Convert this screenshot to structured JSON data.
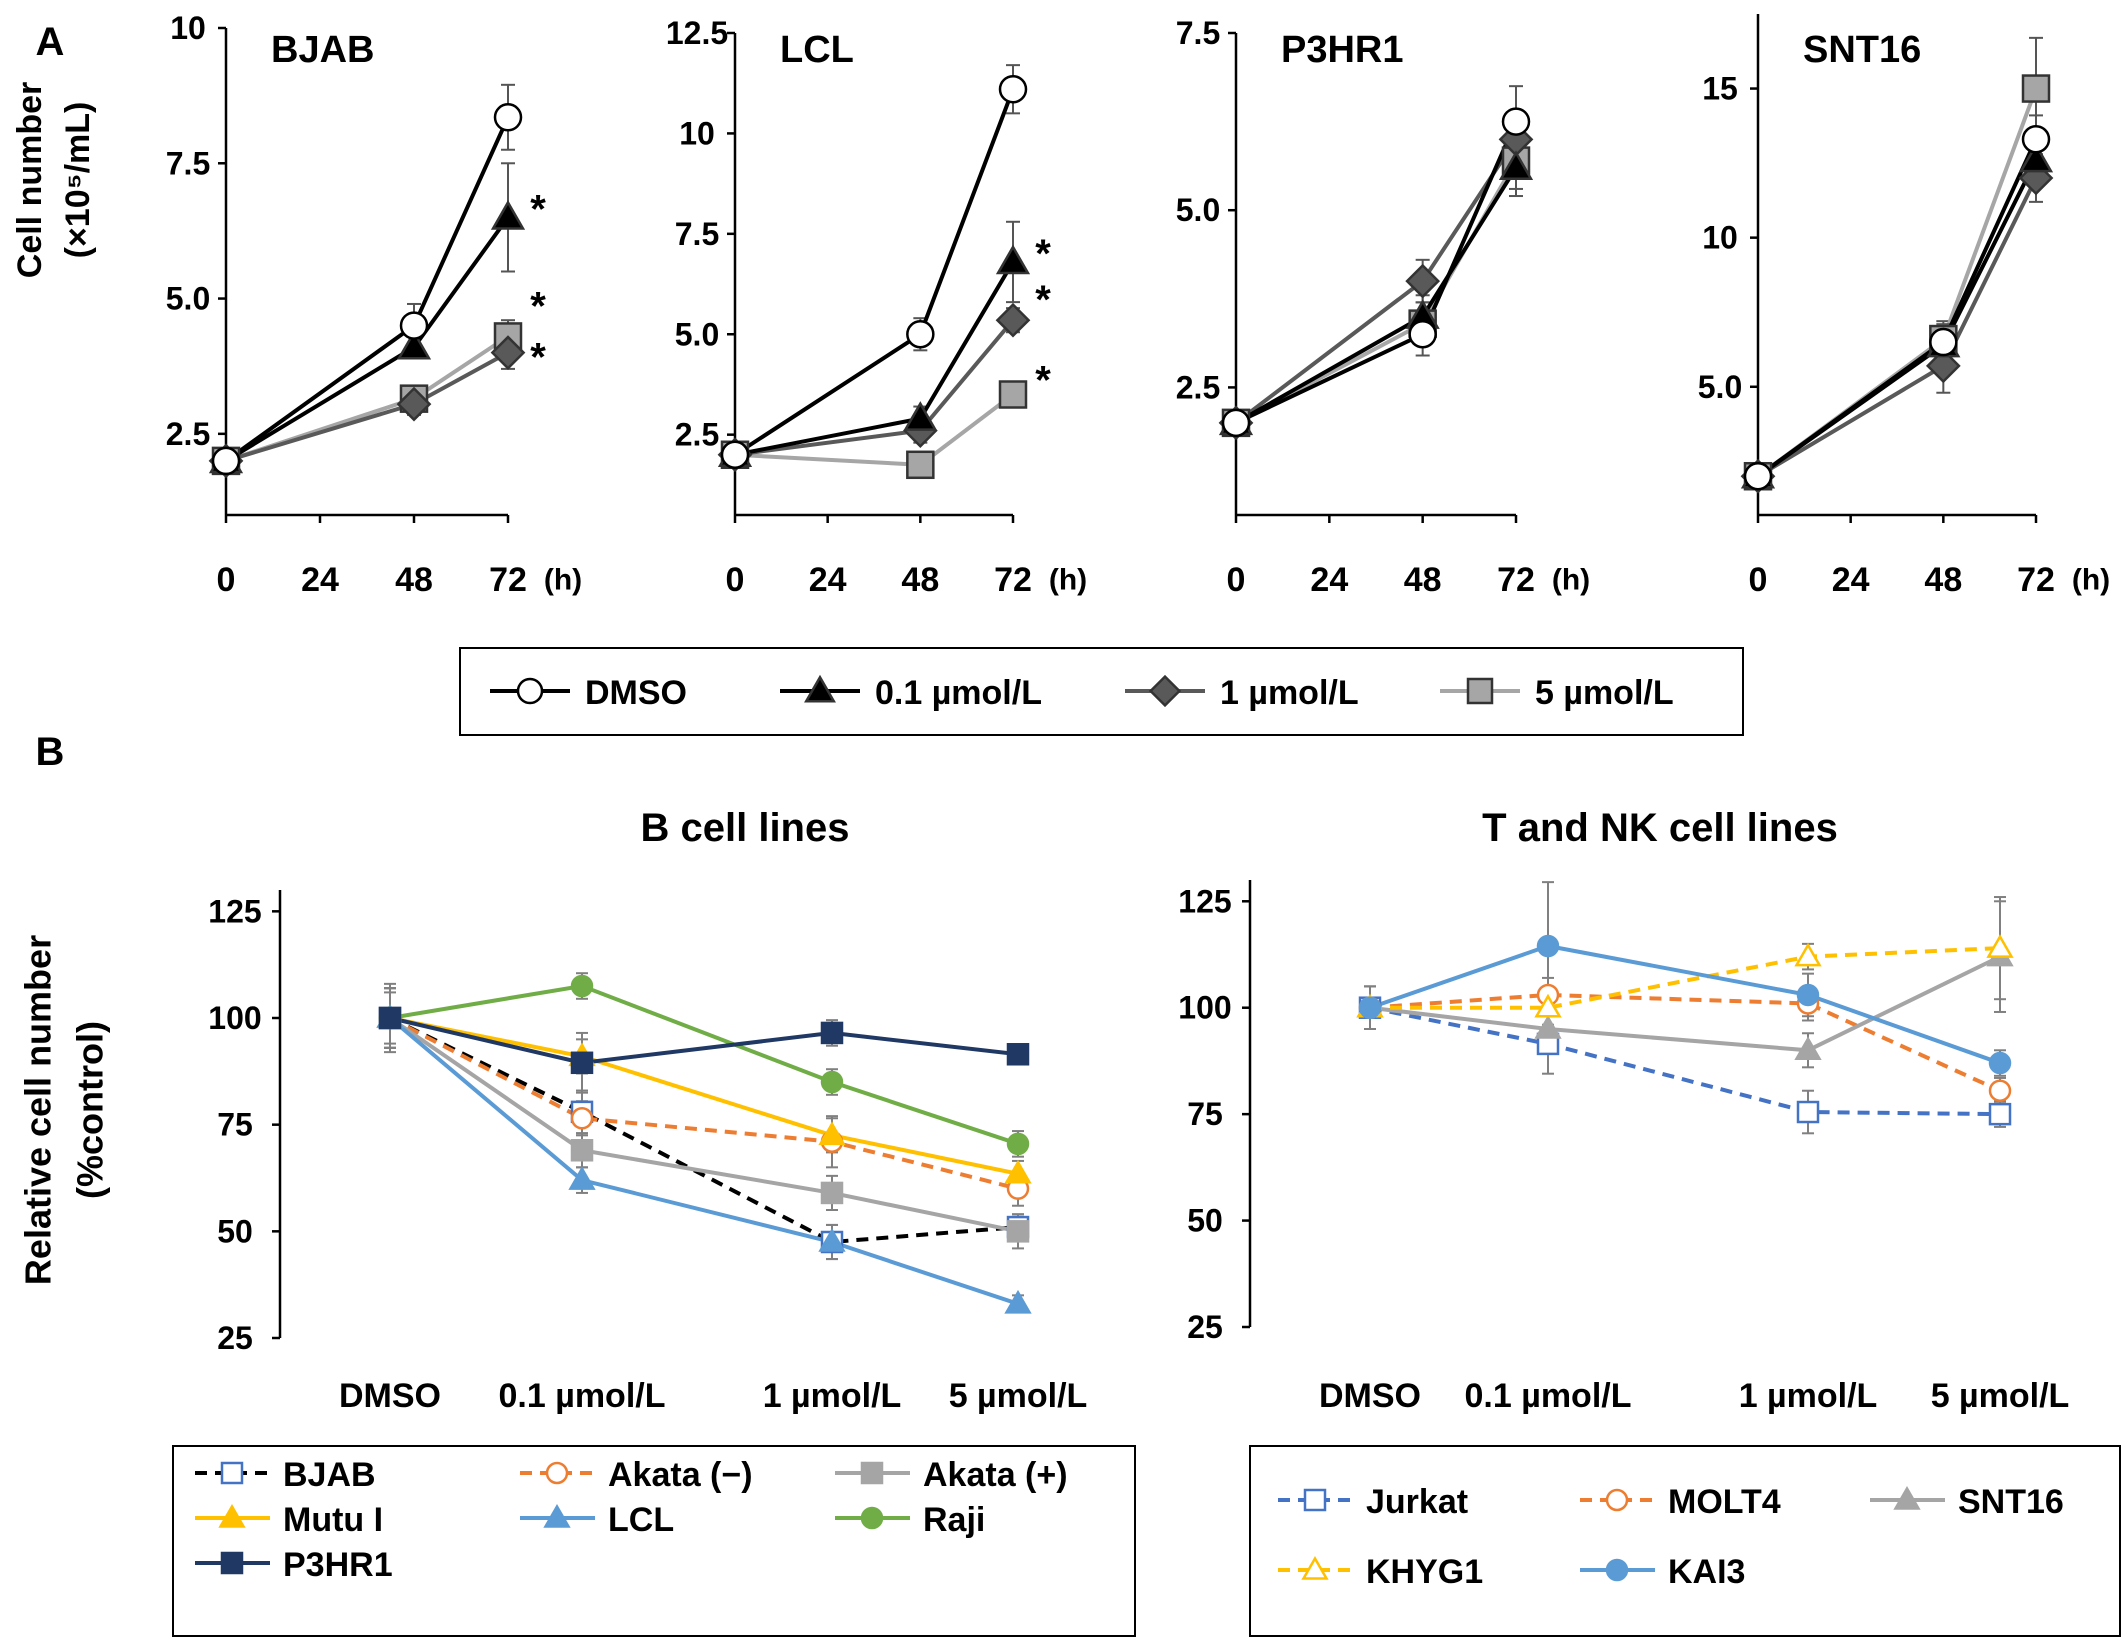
{
  "panels": {
    "a": "A",
    "b": "B"
  },
  "panel_a": {
    "ylabel_line1": "Cell number",
    "ylabel_line2": "(×10⁵/mL)",
    "hours_unit": "(h)",
    "legend": [
      "DMSO",
      "0.1 µmol/L",
      "1 µmol/L",
      "5 µmol/L"
    ],
    "series_colors": [
      "#000000",
      "#000000",
      "#595959",
      "#a6a6a6"
    ],
    "marker_fills": [
      "#ffffff",
      "#000000",
      "#595959",
      "#a6a6a6"
    ],
    "marker_shapes": [
      "circle",
      "triangle",
      "diamond",
      "square"
    ]
  },
  "panel_b": {
    "ylabel_line1": "Relative cell number",
    "ylabel_line2": "(%control)"
  },
  "chart_data": [
    {
      "type": "line",
      "title": "BJAB",
      "x": [
        0,
        48,
        72
      ],
      "x_tick_labels": [
        "0",
        "24",
        "48",
        "72"
      ],
      "y_tick_labels": [
        "2.5",
        "5.0",
        "7.5",
        "10"
      ],
      "ylim": [
        1.0,
        10.0
      ],
      "xlim": [
        0,
        72
      ],
      "series": [
        {
          "name": "DMSO",
          "values": [
            2.0,
            4.5,
            8.35
          ],
          "err": [
            0,
            0.4,
            0.6
          ]
        },
        {
          "name": "0.1 µmol/L",
          "values": [
            2.0,
            4.1,
            6.5
          ],
          "err": [
            0,
            0.2,
            1.0
          ]
        },
        {
          "name": "1 µmol/L",
          "values": [
            2.0,
            3.05,
            4.0
          ],
          "err": [
            0,
            0.2,
            0.3
          ]
        },
        {
          "name": "5 µmol/L",
          "values": [
            2.0,
            3.15,
            4.3
          ],
          "err": [
            0,
            0.2,
            0.3
          ]
        }
      ],
      "annotations": [
        "*",
        "*",
        "*"
      ]
    },
    {
      "type": "line",
      "title": "LCL",
      "x": [
        0,
        48,
        72
      ],
      "x_tick_labels": [
        "0",
        "24",
        "48",
        "72"
      ],
      "y_tick_labels": [
        "2.5",
        "5.0",
        "7.5",
        "10",
        "12.5"
      ],
      "ylim": [
        0.5,
        12.5
      ],
      "xlim": [
        0,
        72
      ],
      "series": [
        {
          "name": "DMSO",
          "values": [
            2.0,
            5.0,
            11.1
          ],
          "err": [
            0,
            0.4,
            0.6
          ]
        },
        {
          "name": "0.1 µmol/L",
          "values": [
            2.0,
            2.9,
            6.8
          ],
          "err": [
            0,
            0.3,
            1.0
          ]
        },
        {
          "name": "1 µmol/L",
          "values": [
            2.0,
            2.6,
            5.35
          ],
          "err": [
            0,
            0.3,
            0.3
          ]
        },
        {
          "name": "5 µmol/L",
          "values": [
            2.0,
            1.75,
            3.5
          ],
          "err": [
            0,
            0.2,
            0.3
          ]
        }
      ],
      "annotations": [
        "*",
        "*",
        "*"
      ]
    },
    {
      "type": "line",
      "title": "P3HR1",
      "x": [
        0,
        48,
        72
      ],
      "x_tick_labels": [
        "0",
        "24",
        "48",
        "72"
      ],
      "y_tick_labels": [
        "2.5",
        "5.0",
        "7.5"
      ],
      "ylim": [
        0.7,
        7.5
      ],
      "xlim": [
        0,
        72
      ],
      "series": [
        {
          "name": "DMSO",
          "values": [
            2.0,
            3.25,
            6.25
          ],
          "err": [
            0,
            0.3,
            0.5
          ]
        },
        {
          "name": "0.1 µmol/L",
          "values": [
            2.0,
            3.5,
            5.6
          ],
          "err": [
            0,
            0.3,
            0.4
          ]
        },
        {
          "name": "1 µmol/L",
          "values": [
            2.0,
            4.0,
            6.0
          ],
          "err": [
            0,
            0.3,
            0.4
          ]
        },
        {
          "name": "5 µmol/L",
          "values": [
            2.0,
            3.4,
            5.7
          ],
          "err": [
            0,
            0.3,
            0.4
          ]
        }
      ]
    },
    {
      "type": "line",
      "title": "SNT16",
      "x": [
        0,
        48,
        72
      ],
      "x_tick_labels": [
        "0",
        "24",
        "48",
        "72"
      ],
      "y_tick_labels": [
        "5.0",
        "10",
        "15"
      ],
      "ylim": [
        0.7,
        17.5
      ],
      "xlim": [
        0,
        72
      ],
      "series": [
        {
          "name": "DMSO",
          "values": [
            2.0,
            6.5,
            13.3
          ],
          "err": [
            0,
            0.6,
            0.8
          ]
        },
        {
          "name": "0.1 µmol/L",
          "values": [
            2.0,
            6.4,
            12.6
          ],
          "err": [
            0,
            0.6,
            0.8
          ]
        },
        {
          "name": "1 µmol/L",
          "values": [
            2.0,
            5.7,
            12.0
          ],
          "err": [
            0,
            0.9,
            0.8
          ]
        },
        {
          "name": "5 µmol/L",
          "values": [
            2.0,
            6.6,
            15.0
          ],
          "err": [
            0,
            0.6,
            1.7
          ]
        }
      ]
    },
    {
      "type": "line",
      "title": "B cell lines",
      "categories": [
        "DMSO",
        "0.1 µmol/L",
        "1 µmol/L",
        "5 µmol/L"
      ],
      "y_tick_labels": [
        "25",
        "50",
        "75",
        "100",
        "125"
      ],
      "ylim": [
        25,
        130
      ],
      "series": [
        {
          "name": "BJAB",
          "values": [
            100,
            78,
            47.5,
            51
          ],
          "color": "#000000",
          "dash": true,
          "marker": "square",
          "fill": "#ffffff",
          "stroke": "#4472c4",
          "err": [
            8,
            5,
            4,
            3
          ]
        },
        {
          "name": "Akata (−)",
          "values": [
            100,
            76.5,
            71,
            60
          ],
          "color": "#ed7d31",
          "dash": true,
          "marker": "circle",
          "fill": "#ffffff",
          "stroke": "#ed7d31",
          "err": [
            7,
            4,
            6,
            4
          ]
        },
        {
          "name": "Akata (+)",
          "values": [
            100,
            69,
            59,
            50
          ],
          "color": "#a5a5a5",
          "dash": false,
          "marker": "square",
          "fill": "#a5a5a5",
          "stroke": "#a5a5a5",
          "err": [
            7,
            4,
            4,
            4
          ]
        },
        {
          "name": "Mutu I",
          "values": [
            100,
            91,
            72.5,
            63.5
          ],
          "color": "#ffc000",
          "dash": false,
          "marker": "triangle",
          "fill": "#ffc000",
          "stroke": "#ffc000",
          "err": [
            6,
            4,
            4,
            3
          ]
        },
        {
          "name": "LCL",
          "values": [
            100,
            62,
            47.5,
            33
          ],
          "color": "#5b9bd5",
          "dash": false,
          "marker": "triangle",
          "fill": "#5b9bd5",
          "stroke": "#5b9bd5",
          "err": [
            7,
            3,
            4,
            2
          ]
        },
        {
          "name": "Raji",
          "values": [
            100,
            107.5,
            85,
            70.5
          ],
          "color": "#70ad47",
          "dash": false,
          "marker": "circle",
          "fill": "#70ad47",
          "stroke": "#70ad47",
          "err": [
            7,
            3,
            3,
            3
          ]
        },
        {
          "name": "P3HR1",
          "values": [
            100,
            89.5,
            96.5,
            91.5
          ],
          "color": "#203864",
          "dash": false,
          "marker": "square",
          "fill": "#203864",
          "stroke": "#203864",
          "err": [
            7,
            7,
            3,
            2
          ]
        }
      ]
    },
    {
      "type": "line",
      "title": "T and NK cell lines",
      "categories": [
        "DMSO",
        "0.1 µmol/L",
        "1 µmol/L",
        "5 µmol/L"
      ],
      "y_tick_labels": [
        "25",
        "50",
        "75",
        "100",
        "125"
      ],
      "ylim": [
        25,
        130
      ],
      "series": [
        {
          "name": "Jurkat",
          "values": [
            100,
            91.5,
            75.5,
            75
          ],
          "color": "#4472c4",
          "dash": true,
          "marker": "square",
          "fill": "#ffffff",
          "stroke": "#4472c4",
          "err": [
            5,
            7,
            5,
            3
          ]
        },
        {
          "name": "MOLT4",
          "values": [
            100,
            103,
            101,
            80.5
          ],
          "color": "#ed7d31",
          "dash": true,
          "marker": "circle",
          "fill": "#ffffff",
          "stroke": "#ed7d31",
          "err": [
            5,
            4,
            4,
            3
          ]
        },
        {
          "name": "SNT16",
          "values": [
            100,
            95,
            90,
            112
          ],
          "color": "#a5a5a5",
          "dash": false,
          "marker": "triangle",
          "fill": "#a5a5a5",
          "stroke": "#a5a5a5",
          "err": [
            5,
            4,
            4,
            13
          ]
        },
        {
          "name": "KHYG1",
          "values": [
            100,
            100,
            112,
            114
          ],
          "color": "#ffc000",
          "dash": true,
          "marker": "triangle",
          "fill": "#ffffff",
          "stroke": "#ffc000",
          "err": [
            5,
            4,
            3,
            12
          ]
        },
        {
          "name": "KAI3",
          "values": [
            100,
            114.5,
            103,
            87
          ],
          "color": "#5b9bd5",
          "dash": false,
          "marker": "circle",
          "fill": "#5b9bd5",
          "stroke": "#5b9bd5",
          "err": [
            5,
            15,
            5,
            3
          ]
        }
      ]
    }
  ]
}
